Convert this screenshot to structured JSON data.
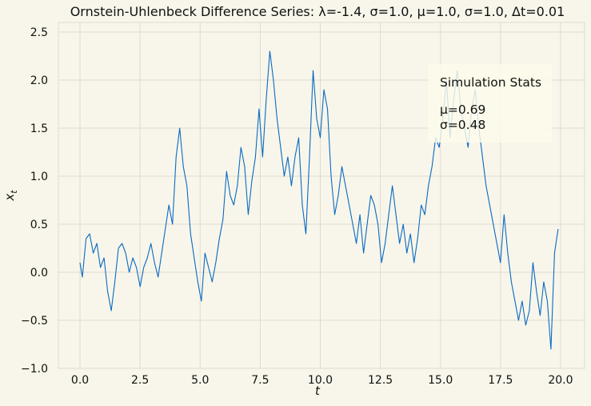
{
  "chart_data": {
    "type": "line",
    "title": "Ornstein-Uhlenbeck Difference Series: λ=-1.4, σ=1.0, μ=1.0, σ=1.0, Δt=0.01",
    "xlabel": "t",
    "ylabel": "x",
    "ylabel_subscript": "t",
    "xlim": [
      -0.9,
      21.0
    ],
    "ylim": [
      -1.0,
      2.6
    ],
    "xticks": [
      0.0,
      2.5,
      5.0,
      7.5,
      10.0,
      12.5,
      15.0,
      17.5,
      20.0
    ],
    "xtick_labels": [
      "0.0",
      "2.5",
      "5.0",
      "7.5",
      "10.0",
      "12.5",
      "15.0",
      "17.5",
      "20.0"
    ],
    "yticks": [
      -1.0,
      -0.5,
      0.0,
      0.5,
      1.0,
      1.5,
      2.0,
      2.5
    ],
    "ytick_labels": [
      "−1.0",
      "−0.5",
      "0.0",
      "0.5",
      "1.0",
      "1.5",
      "2.0",
      "2.5"
    ],
    "grid": true,
    "series": [
      {
        "color": "#0a6ac4",
        "x": [
          0.0,
          0.1,
          0.25,
          0.4,
          0.55,
          0.7,
          0.85,
          1.0,
          1.15,
          1.3,
          1.45,
          1.6,
          1.75,
          1.9,
          2.05,
          2.2,
          2.35,
          2.5,
          2.65,
          2.8,
          2.95,
          3.1,
          3.25,
          3.4,
          3.55,
          3.7,
          3.85,
          4.0,
          4.15,
          4.3,
          4.45,
          4.6,
          4.75,
          4.9,
          5.05,
          5.2,
          5.35,
          5.5,
          5.65,
          5.8,
          5.95,
          6.1,
          6.25,
          6.4,
          6.55,
          6.7,
          6.85,
          7.0,
          7.15,
          7.3,
          7.45,
          7.6,
          7.75,
          7.9,
          8.05,
          8.2,
          8.35,
          8.5,
          8.65,
          8.8,
          8.95,
          9.1,
          9.25,
          9.4,
          9.55,
          9.7,
          9.85,
          10.0,
          10.15,
          10.3,
          10.45,
          10.6,
          10.75,
          10.9,
          11.05,
          11.2,
          11.35,
          11.5,
          11.65,
          11.8,
          11.95,
          12.1,
          12.25,
          12.4,
          12.55,
          12.7,
          12.85,
          13.0,
          13.15,
          13.3,
          13.45,
          13.6,
          13.75,
          13.9,
          14.05,
          14.2,
          14.35,
          14.5,
          14.65,
          14.8,
          14.95,
          15.1,
          15.25,
          15.4,
          15.55,
          15.7,
          15.85,
          16.0,
          16.15,
          16.3,
          16.45,
          16.6,
          16.75,
          16.9,
          17.05,
          17.2,
          17.35,
          17.5,
          17.65,
          17.8,
          17.95,
          18.1,
          18.25,
          18.4,
          18.55,
          18.7,
          18.85,
          19.0,
          19.15,
          19.3,
          19.45,
          19.6,
          19.75,
          19.9
        ],
        "y": [
          0.1,
          -0.05,
          0.35,
          0.4,
          0.2,
          0.3,
          0.05,
          0.15,
          -0.2,
          -0.4,
          -0.1,
          0.25,
          0.3,
          0.2,
          0.0,
          0.15,
          0.05,
          -0.15,
          0.05,
          0.15,
          0.3,
          0.1,
          -0.05,
          0.2,
          0.45,
          0.7,
          0.5,
          1.2,
          1.5,
          1.1,
          0.9,
          0.4,
          0.15,
          -0.1,
          -0.3,
          0.2,
          0.05,
          -0.1,
          0.1,
          0.35,
          0.55,
          1.05,
          0.8,
          0.7,
          0.9,
          1.3,
          1.1,
          0.6,
          0.95,
          1.2,
          1.7,
          1.2,
          1.8,
          2.3,
          2.0,
          1.6,
          1.3,
          1.0,
          1.2,
          0.9,
          1.2,
          1.4,
          0.7,
          0.4,
          1.2,
          2.1,
          1.6,
          1.4,
          1.9,
          1.7,
          1.0,
          0.6,
          0.8,
          1.1,
          0.9,
          0.7,
          0.5,
          0.3,
          0.6,
          0.2,
          0.5,
          0.8,
          0.7,
          0.5,
          0.1,
          0.3,
          0.6,
          0.9,
          0.6,
          0.3,
          0.5,
          0.2,
          0.4,
          0.1,
          0.35,
          0.7,
          0.6,
          0.9,
          1.1,
          1.4,
          1.3,
          1.6,
          2.0,
          1.4,
          1.8,
          2.1,
          1.7,
          1.5,
          1.3,
          1.7,
          1.9,
          1.5,
          1.2,
          0.9,
          0.7,
          0.5,
          0.3,
          0.1,
          0.6,
          0.2,
          -0.1,
          -0.3,
          -0.5,
          -0.3,
          -0.55,
          -0.4,
          0.1,
          -0.2,
          -0.45,
          -0.1,
          -0.3,
          -0.8,
          0.2,
          0.45
        ]
      }
    ]
  },
  "stats": {
    "title": "Simulation Stats",
    "mu": "μ=0.69",
    "sigma": "σ=0.48"
  }
}
